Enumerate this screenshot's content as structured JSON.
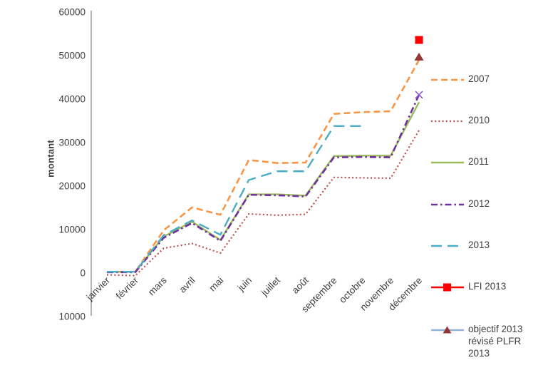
{
  "page": {
    "background": "#ffffff"
  },
  "y_axis": {
    "title": "montant",
    "tick_labels": [
      "60000",
      "50000",
      "40000",
      "30000",
      "20000",
      "10000",
      "0",
      "10000"
    ]
  },
  "chart_data": {
    "type": "line",
    "title": "",
    "xlabel": "",
    "ylabel": "montant",
    "ylim": [
      -10000,
      60000
    ],
    "grid": false,
    "legend_position": "right",
    "axis_color": "#8c8c8c",
    "categories": [
      "janvier",
      "février",
      "mars",
      "avril",
      "mai",
      "juin",
      "juillet",
      "août",
      "septembre",
      "octobre",
      "novembre",
      "décembre"
    ],
    "series": [
      {
        "name": "2007",
        "color": "#F79646",
        "style": "dashed",
        "dash": "9 5",
        "width": 2.6,
        "values": [
          300,
          300,
          9800,
          15100,
          13400,
          26000,
          25300,
          25400,
          36600,
          37000,
          37200,
          49000
        ]
      },
      {
        "name": "2010",
        "color": "#C0504D",
        "style": "dotted",
        "dash": "2 3.2",
        "width": 2.2,
        "values": [
          -400,
          -600,
          5700,
          6800,
          4600,
          13600,
          13300,
          13500,
          22000,
          21900,
          21800,
          32800
        ]
      },
      {
        "name": "2011",
        "color": "#9BBB59",
        "style": "solid",
        "dash": null,
        "width": 2.4,
        "values": [
          300,
          300,
          8400,
          11800,
          7600,
          18100,
          18100,
          17800,
          26900,
          27000,
          27000,
          39300
        ]
      },
      {
        "name": "2012",
        "color": "#7030A0",
        "style": "dash-dot",
        "dash": "9 4 2.5 4",
        "width": 2.6,
        "end_marker": "x",
        "end_marker_color": "#8A5BC8",
        "values": [
          200,
          200,
          8100,
          11500,
          7400,
          18000,
          17900,
          17600,
          26600,
          26700,
          26600,
          41000
        ]
      },
      {
        "name": "2013",
        "color": "#4BACC6",
        "style": "long-dash",
        "dash": "15 8",
        "width": 2.4,
        "values": [
          300,
          300,
          8700,
          12100,
          8800,
          21400,
          23400,
          23400,
          33800,
          33800,
          null,
          null
        ]
      },
      {
        "name": "LFI 2013",
        "color": "#FF0000",
        "style": "marker-only",
        "marker": "square",
        "values": [
          null,
          null,
          null,
          null,
          null,
          null,
          null,
          null,
          null,
          null,
          null,
          53600
        ]
      },
      {
        "name": "objectif 2013 révisé PLFR 2013",
        "color": "#95B3D7",
        "style": "marker-only",
        "marker": "triangle",
        "marker_color": "#953735",
        "values": [
          null,
          null,
          null,
          null,
          null,
          null,
          null,
          null,
          null,
          null,
          null,
          49700
        ]
      }
    ]
  }
}
